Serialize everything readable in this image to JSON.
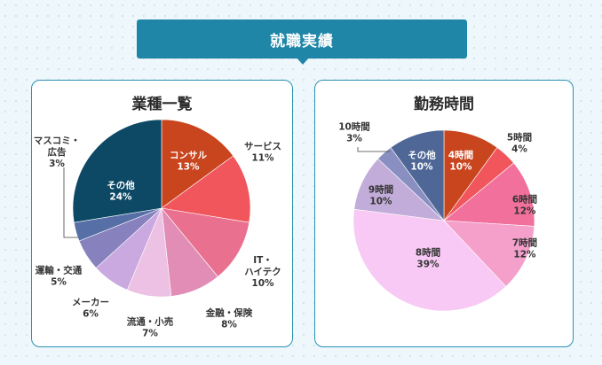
{
  "header": {
    "title": "就職実績"
  },
  "colors": {
    "accent": "#1f86a8"
  },
  "chart_data": [
    {
      "type": "pie",
      "title": "業種一覧",
      "slices": [
        {
          "label": "コンサル",
          "value": 13,
          "color": "#c8451e"
        },
        {
          "label": "サービス",
          "value": 11,
          "color": "#f0565c"
        },
        {
          "label": "IT・ハイテク",
          "value": 10,
          "color": "#e9708f"
        },
        {
          "label": "金融・保険",
          "value": 8,
          "color": "#e28db5"
        },
        {
          "label": "流通・小売",
          "value": 7,
          "color": "#ecc1e4"
        },
        {
          "label": "メーカー",
          "value": 6,
          "color": "#c9a9e0"
        },
        {
          "label": "運輸・交通",
          "value": 5,
          "color": "#8782be"
        },
        {
          "label": "マスコミ・広告",
          "value": 3,
          "color": "#566fa6"
        },
        {
          "label": "その他",
          "value": 24,
          "color": "#0d4865"
        }
      ]
    },
    {
      "type": "pie",
      "title": "勤務時間",
      "slices": [
        {
          "label": "4時間",
          "value": 10,
          "color": "#c8451e"
        },
        {
          "label": "5時間",
          "value": 4,
          "color": "#f0565c"
        },
        {
          "label": "6時間",
          "value": 12,
          "color": "#f2709c"
        },
        {
          "label": "7時間",
          "value": 12,
          "color": "#f4a0cb"
        },
        {
          "label": "8時間",
          "value": 39,
          "color": "#f7c9f4"
        },
        {
          "label": "9時間",
          "value": 10,
          "color": "#c2acd9"
        },
        {
          "label": "10時間",
          "value": 3,
          "color": "#8a8fc2"
        },
        {
          "label": "その他",
          "value": 10,
          "color": "#4e6796"
        }
      ]
    }
  ]
}
